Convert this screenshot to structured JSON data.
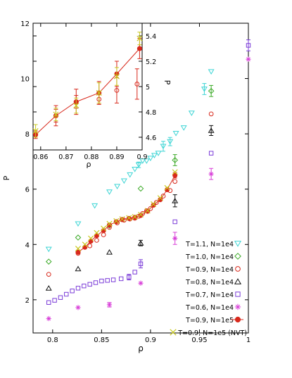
{
  "chart_data": [
    {
      "type": "scatter",
      "title": "",
      "xlabel": "ρ",
      "ylabel": "P",
      "xlim": [
        0.78,
        1.0
      ],
      "ylim": [
        0.8,
        12
      ],
      "x_ticks": [
        "0.8",
        "0.85",
        "0.9",
        "0.95",
        "1"
      ],
      "y_ticks": [
        "2",
        "4",
        "6",
        "8",
        "10",
        "12"
      ],
      "grid": false,
      "legend_position": "bottom-right",
      "series": [
        {
          "name": "T=1.1, N=1e4",
          "color": "#3fd5d5",
          "marker": "triangle-down-open",
          "x": [
            0.796,
            0.826,
            0.843,
            0.858,
            0.866,
            0.873,
            0.879,
            0.884,
            0.888,
            0.892,
            0.896,
            0.9,
            0.904,
            0.908,
            0.913,
            0.92,
            0.926,
            0.934,
            0.942,
            0.955,
            0.962
          ],
          "y": [
            3.83,
            4.75,
            5.4,
            5.9,
            6.1,
            6.3,
            6.52,
            6.72,
            6.88,
            7.02,
            7.02,
            7.12,
            7.22,
            7.3,
            7.55,
            7.72,
            8.02,
            8.22,
            8.75,
            9.62,
            10.25
          ],
          "yerr": [
            0,
            0,
            0,
            0,
            0,
            0,
            0,
            0,
            0.1,
            0,
            0,
            0,
            0,
            0,
            0.18,
            0.15,
            0,
            0,
            0,
            0.2,
            0
          ]
        },
        {
          "name": "T=1.0, N=1e4",
          "color": "#3caa28",
          "marker": "diamond-open",
          "x": [
            0.796,
            0.826,
            0.858,
            0.89,
            0.925,
            0.962
          ],
          "y": [
            3.38,
            4.25,
            4.68,
            6.02,
            7.05,
            9.55
          ],
          "yerr": [
            0,
            0,
            0,
            0,
            0.2,
            0.2
          ]
        },
        {
          "name": "T=0.9, N=1e4",
          "color": "#d8291c",
          "marker": "circle-open",
          "x": [
            0.796,
            0.826,
            0.838,
            0.845,
            0.852,
            0.858,
            0.866,
            0.873,
            0.879,
            0.884,
            0.888,
            0.892,
            0.896,
            0.9,
            0.906,
            0.913,
            0.92,
            0.925,
            0.962
          ],
          "y": [
            2.92,
            3.68,
            3.95,
            4.15,
            4.35,
            4.62,
            4.78,
            4.88,
            4.92,
            4.95,
            5.02,
            5.12,
            5.22,
            5.3,
            5.52,
            5.75,
            5.95,
            6.28,
            8.72
          ],
          "yerr": [
            0,
            0,
            0,
            0,
            0,
            0,
            0,
            0,
            0,
            0,
            0,
            0,
            0,
            0,
            0,
            0,
            0,
            0,
            0
          ]
        },
        {
          "name": "T=0.8, N=1e4",
          "color": "#111111",
          "marker": "triangle-up-open",
          "x": [
            0.796,
            0.826,
            0.858,
            0.89,
            0.925,
            0.962
          ],
          "y": [
            2.42,
            3.12,
            3.72,
            4.05,
            5.58,
            8.12
          ],
          "yerr": [
            0,
            0,
            0,
            0.1,
            0.22,
            0.18
          ]
        },
        {
          "name": "T=0.7, N=1e4",
          "color": "#7b3cd8",
          "marker": "square-open",
          "x": [
            0.796,
            0.802,
            0.808,
            0.814,
            0.82,
            0.826,
            0.832,
            0.838,
            0.844,
            0.85,
            0.856,
            0.862,
            0.87,
            0.878,
            0.884,
            0.89,
            0.925,
            0.962,
            1.0
          ],
          "y": [
            1.9,
            1.98,
            2.08,
            2.2,
            2.32,
            2.42,
            2.5,
            2.56,
            2.62,
            2.68,
            2.7,
            2.72,
            2.76,
            2.82,
            3.0,
            3.3,
            4.82,
            7.3,
            11.2
          ],
          "yerr": [
            0,
            0,
            0,
            0,
            0,
            0,
            0,
            0,
            0,
            0,
            0,
            0,
            0,
            0.1,
            0,
            0.15,
            0,
            0,
            0.2
          ]
        },
        {
          "name": "T=0.6, N=1e4",
          "color": "#d83ed8",
          "marker": "star",
          "x": [
            0.796,
            0.826,
            0.858,
            0.89,
            0.925,
            0.962,
            1.0
          ],
          "y": [
            1.32,
            1.72,
            1.82,
            2.6,
            4.22,
            6.55,
            10.7
          ],
          "yerr": [
            0,
            0,
            0.08,
            0,
            0.22,
            0.2,
            0
          ]
        },
        {
          "name": "T=0.9, N=1e5",
          "color": "#d8291c",
          "marker": "circle-filled-line",
          "x": [
            0.826,
            0.833,
            0.839,
            0.845,
            0.852,
            0.858,
            0.865,
            0.871,
            0.878,
            0.884,
            0.89,
            0.897,
            0.903,
            0.91,
            0.917,
            0.925
          ],
          "y": [
            3.72,
            3.9,
            4.12,
            4.32,
            4.5,
            4.7,
            4.82,
            4.9,
            4.94,
            4.98,
            5.05,
            5.2,
            5.42,
            5.62,
            5.98,
            6.5
          ],
          "yerr": [
            0,
            0,
            0,
            0,
            0,
            0,
            0,
            0,
            0,
            0,
            0,
            0,
            0,
            0,
            0,
            0.1
          ]
        },
        {
          "name": "T=0.9, N=1e5 (NVT)",
          "color": "#c8c81e",
          "marker": "cross",
          "x": [
            0.826,
            0.833,
            0.839,
            0.845,
            0.852,
            0.858,
            0.865,
            0.871,
            0.878,
            0.884,
            0.89,
            0.897,
            0.903,
            0.91,
            0.917,
            0.925
          ],
          "y": [
            3.85,
            4.0,
            4.22,
            4.42,
            4.58,
            4.75,
            4.85,
            4.92,
            4.96,
            5.0,
            5.08,
            5.22,
            5.46,
            5.68,
            6.05,
            6.62
          ],
          "yerr": [
            0,
            0,
            0,
            0,
            0,
            0,
            0,
            0,
            0,
            0,
            0,
            0,
            0,
            0,
            0,
            0
          ]
        }
      ]
    },
    {
      "type": "scatter",
      "title": "",
      "xlabel": "ρ",
      "ylabel": "P",
      "xlim": [
        0.857,
        0.9
      ],
      "ylim": [
        4.5,
        5.5
      ],
      "x_ticks": [
        "0.86",
        "0.87",
        "0.88",
        "0.89",
        "0.9"
      ],
      "y_ticks": [
        "4.6",
        "4.8",
        "5",
        "5.2",
        "5.4"
      ],
      "grid": false,
      "series": [
        {
          "name": "T=0.9, N=1e4",
          "color": "#d8291c",
          "marker": "circle-open",
          "x": [
            0.858,
            0.866,
            0.874,
            0.883,
            0.89,
            0.898
          ],
          "y": [
            4.62,
            4.77,
            4.88,
            4.9,
            4.97,
            5.02
          ],
          "yerr": [
            0.03,
            0.05,
            0.05,
            0.04,
            0.1,
            0.12
          ]
        },
        {
          "name": "T=0.9, N=1e5",
          "color": "#d8291c",
          "marker": "circle-filled-line",
          "x": [
            0.858,
            0.866,
            0.874,
            0.883,
            0.89,
            0.899
          ],
          "y": [
            4.62,
            4.77,
            4.88,
            4.95,
            5.1,
            5.3
          ],
          "yerr": [
            0,
            0.08,
            0.1,
            0.09,
            0.1,
            0.08
          ]
        },
        {
          "name": "T=0.9, N=1e5 (NVT)",
          "color": "#c8c81e",
          "marker": "cross",
          "x": [
            0.858,
            0.866,
            0.874,
            0.883,
            0.89,
            0.899
          ],
          "y": [
            4.65,
            4.78,
            4.85,
            4.95,
            5.08,
            5.38
          ],
          "yerr": [
            0.05,
            0.05,
            0.06,
            0.08,
            0.07,
            0.05
          ]
        }
      ]
    }
  ]
}
